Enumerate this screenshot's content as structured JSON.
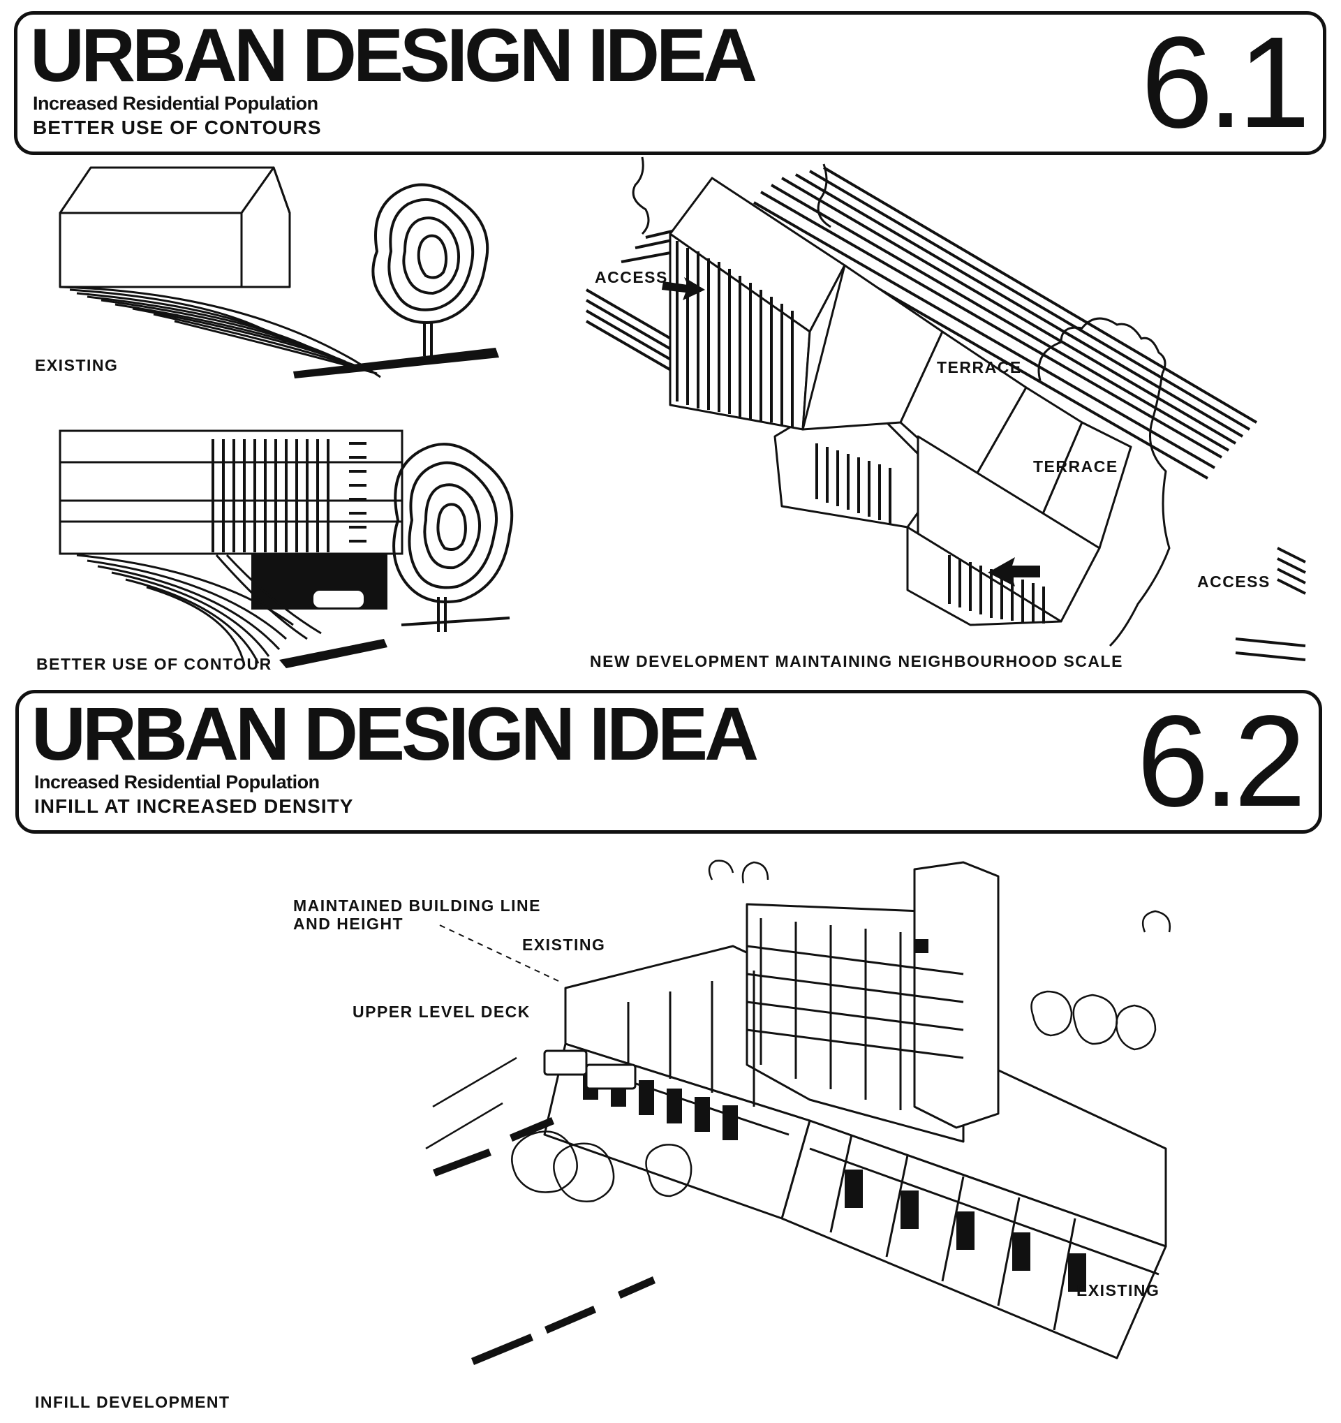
{
  "panel_1": {
    "title": "URBAN DESIGN IDEA",
    "number": "6.1",
    "subtitle": "Increased Residential Population",
    "caption": "BETTER USE OF CONTOURS",
    "labels": {
      "existing": "EXISTING",
      "better_use": "BETTER USE OF CONTOUR",
      "access_top": "ACCESS",
      "terrace_upper": "TERRACE",
      "terrace_lower": "TERRACE",
      "access_bottom": "ACCESS",
      "new_development": "NEW DEVELOPMENT MAINTAINING NEIGHBOURHOOD SCALE"
    }
  },
  "panel_2": {
    "title": "URBAN DESIGN IDEA",
    "number": "6.2",
    "subtitle": "Increased Residential Population",
    "caption": "INFILL AT INCREASED DENSITY",
    "labels": {
      "building_line_1": "MAINTAINED BUILDING LINE",
      "building_line_2": "AND HEIGHT",
      "existing_top": "EXISTING",
      "upper_deck": "UPPER LEVEL DECK",
      "existing_right": "EXISTING",
      "infill": "INFILL DEVELOPMENT"
    }
  }
}
